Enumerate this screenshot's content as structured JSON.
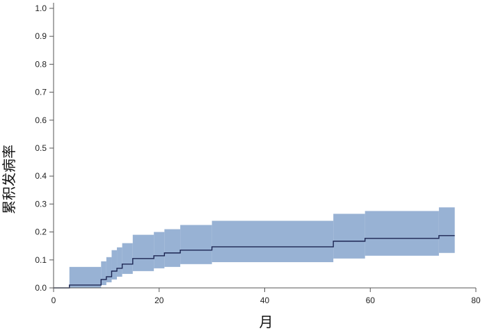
{
  "chart_data": {
    "type": "line",
    "title": "",
    "xlabel": "月",
    "ylabel": "累积发病率",
    "xlim": [
      0,
      80
    ],
    "ylim": [
      0,
      1.0
    ],
    "xticks": [
      0,
      20,
      40,
      60,
      80
    ],
    "yticks": [
      0.0,
      0.1,
      0.2,
      0.3,
      0.4,
      0.5,
      0.6,
      0.7,
      0.8,
      0.9,
      1.0
    ],
    "ytick_labels": [
      "0.0",
      "0.1",
      "0.2",
      "0.3",
      "0.4",
      "0.5",
      "0.6",
      "0.7",
      "0.8",
      "0.9",
      "1.0"
    ],
    "grid": false,
    "legend": "none",
    "series": [
      {
        "kind": "step",
        "color": "#1c2552",
        "x": [
          0,
          3,
          9,
          10,
          11,
          12,
          13,
          15,
          19,
          21,
          24,
          30,
          53,
          59,
          73,
          76
        ],
        "y": [
          0.0,
          0.01,
          0.03,
          0.04,
          0.06,
          0.07,
          0.085,
          0.105,
          0.115,
          0.125,
          0.135,
          0.147,
          0.167,
          0.177,
          0.187,
          0.187
        ]
      }
    ],
    "confidence_band": {
      "color": "#98b2d4",
      "x": [
        3,
        9,
        10,
        11,
        12,
        13,
        15,
        19,
        21,
        24,
        30,
        53,
        59,
        73,
        76
      ],
      "lower": [
        0.0,
        0.01,
        0.02,
        0.03,
        0.04,
        0.05,
        0.06,
        0.07,
        0.075,
        0.085,
        0.092,
        0.105,
        0.115,
        0.125,
        0.125
      ],
      "upper": [
        0.075,
        0.095,
        0.11,
        0.135,
        0.145,
        0.16,
        0.19,
        0.2,
        0.21,
        0.225,
        0.24,
        0.265,
        0.275,
        0.288,
        0.288
      ]
    }
  }
}
